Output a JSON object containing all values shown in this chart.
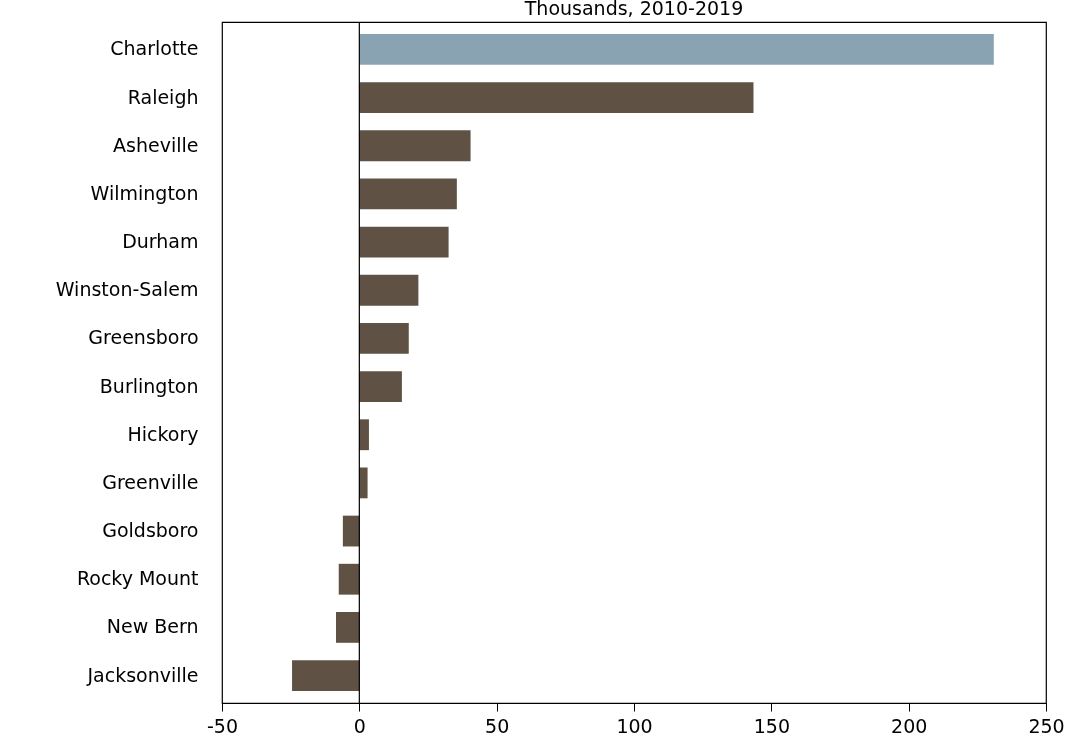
{
  "chart_data": {
    "type": "bar",
    "orientation": "horizontal",
    "subtitle": "Thousands, 2010-2019",
    "categories": [
      "Charlotte",
      "Raleigh",
      "Asheville",
      "Wilmington",
      "Durham",
      "Winston-Salem",
      "Greensboro",
      "Burlington",
      "Hickory",
      "Greenville",
      "Goldsboro",
      "Rocky Mount",
      "New Bern",
      "Jacksonville"
    ],
    "values": [
      231,
      143.5,
      40.5,
      35.5,
      32.5,
      21.5,
      18,
      15.5,
      3.5,
      3,
      -6,
      -7.5,
      -8.5,
      -24.5
    ],
    "colors": [
      "#8aa3b3",
      "#5f5245",
      "#5f5245",
      "#5f5245",
      "#5f5245",
      "#5f5245",
      "#5f5245",
      "#5f5245",
      "#5f5245",
      "#5f5245",
      "#5f5245",
      "#5f5245",
      "#5f5245",
      "#5f5245"
    ],
    "xlim": [
      -50,
      250
    ],
    "xticks": [
      -50,
      0,
      50,
      100,
      150,
      200,
      250
    ],
    "ref_lines": [
      {
        "axis": "x",
        "value": 0,
        "color": "#000000"
      }
    ],
    "grid": false,
    "legend": false
  }
}
